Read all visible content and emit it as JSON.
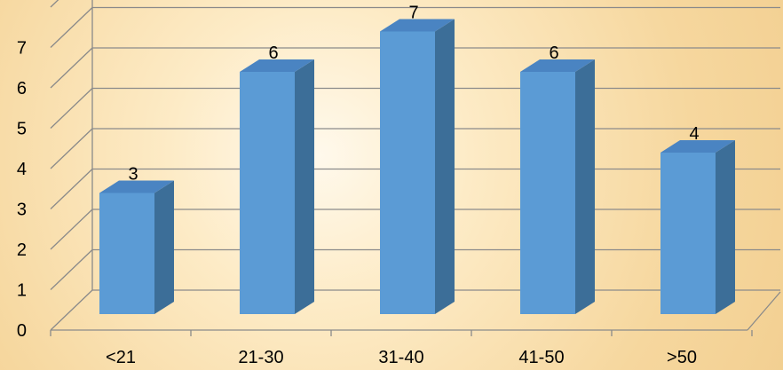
{
  "chart_data": {
    "type": "bar",
    "title": "",
    "xlabel": "",
    "ylabel": "",
    "categories": [
      "<21",
      "21-30",
      "31-40",
      "41-50",
      ">50"
    ],
    "values": [
      3,
      6,
      7,
      6,
      4
    ],
    "data_labels": [
      "3",
      "6",
      "7",
      "6",
      "4"
    ],
    "y_ticks": [
      "0",
      "1",
      "2",
      "3",
      "4",
      "5",
      "6",
      "7"
    ],
    "ylim": [
      0,
      8
    ],
    "grid": true,
    "legend": "none",
    "style": "3d-column",
    "colors": {
      "bar_front": "#5b9bd5",
      "bar_side": "#3c6e98",
      "bar_top": "#4a84c2",
      "grid": "#8a8a8a",
      "text": "#000000"
    }
  }
}
